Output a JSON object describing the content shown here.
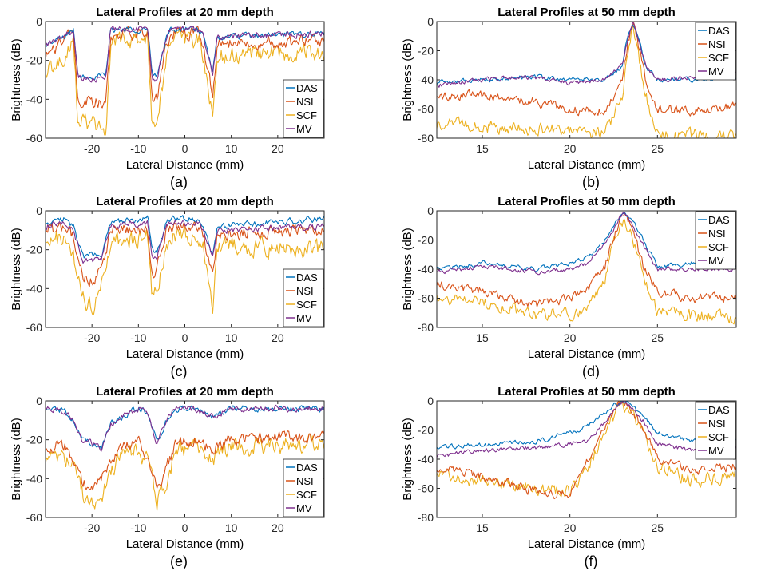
{
  "colors": {
    "DAS": "#0072BD",
    "NSI": "#D95319",
    "SCF": "#EDB120",
    "MV": "#7E2F8E",
    "axis": "#262626",
    "text": "#000000"
  },
  "legend_entries": [
    "DAS",
    "NSI",
    "SCF",
    "MV"
  ],
  "chart_data": [
    {
      "panel": "a",
      "caption": "(a)",
      "type": "line",
      "title": "Lateral Profiles at 20 mm depth",
      "xlabel": "Lateral Distance (mm)",
      "ylabel": "Brightness (dB)",
      "xlim": [
        -30,
        30
      ],
      "ylim": [
        -60,
        0
      ],
      "xticks": [
        -20,
        -10,
        0,
        10,
        20
      ],
      "yticks": [
        -60,
        -40,
        -20,
        0
      ],
      "legend_position": "bottom-right",
      "x": [
        -30,
        -26,
        -24,
        -23,
        -17,
        -16,
        -15,
        -8,
        -7,
        -6,
        -4,
        -3,
        3,
        4,
        6,
        7,
        30
      ],
      "series": [
        {
          "name": "DAS",
          "values": [
            -12,
            -8,
            -4,
            -28,
            -28,
            -4,
            -4,
            -4,
            -28,
            -28,
            -8,
            -4,
            -4,
            -8,
            -26,
            -8,
            -6
          ]
        },
        {
          "name": "NSI",
          "values": [
            -18,
            -10,
            -6,
            -40,
            -42,
            -8,
            -6,
            -6,
            -40,
            -40,
            -12,
            -6,
            -6,
            -12,
            -38,
            -12,
            -10
          ]
        },
        {
          "name": "SCF",
          "values": [
            -28,
            -18,
            -8,
            -52,
            -55,
            -12,
            -10,
            -10,
            -55,
            -55,
            -18,
            -10,
            -10,
            -18,
            -50,
            -18,
            -16
          ]
        },
        {
          "name": "MV",
          "values": [
            -12,
            -8,
            -4,
            -29,
            -30,
            -4,
            -4,
            -4,
            -30,
            -30,
            -8,
            -4,
            -4,
            -8,
            -27,
            -8,
            -6
          ]
        }
      ]
    },
    {
      "panel": "b",
      "caption": "(b)",
      "type": "line",
      "title": "Lateral Profiles at 50 mm depth",
      "xlabel": "Lateral Distance (mm)",
      "ylabel": "Brightness (dB)",
      "xlim": [
        12.4,
        29.5
      ],
      "ylim": [
        -80,
        0
      ],
      "xticks": [
        15,
        20,
        25
      ],
      "yticks": [
        -80,
        -60,
        -40,
        -20,
        0
      ],
      "legend_position": "top-right",
      "x": [
        12.4,
        15,
        18,
        20,
        22,
        23,
        23.3,
        23.6,
        23.9,
        24.3,
        25,
        27,
        29.5
      ],
      "series": [
        {
          "name": "DAS",
          "values": [
            -42,
            -40,
            -38,
            -40,
            -40,
            -30,
            -10,
            0,
            -10,
            -30,
            -40,
            -40,
            -38
          ]
        },
        {
          "name": "NSI",
          "values": [
            -52,
            -50,
            -55,
            -60,
            -62,
            -40,
            -15,
            0,
            -15,
            -40,
            -60,
            -62,
            -58
          ]
        },
        {
          "name": "SCF",
          "values": [
            -70,
            -72,
            -74,
            -75,
            -78,
            -50,
            -20,
            -2,
            -20,
            -50,
            -78,
            -78,
            -80
          ]
        },
        {
          "name": "MV",
          "values": [
            -44,
            -40,
            -38,
            -42,
            -40,
            -30,
            -12,
            0,
            -12,
            -30,
            -40,
            -38,
            -36
          ]
        }
      ]
    },
    {
      "panel": "c",
      "caption": "(c)",
      "type": "line",
      "title": "Lateral Profiles at 20 mm depth",
      "xlabel": "Lateral Distance (mm)",
      "ylabel": "Brightness (dB)",
      "xlim": [
        -30,
        30
      ],
      "ylim": [
        -60,
        0
      ],
      "xticks": [
        -20,
        -10,
        0,
        10,
        20
      ],
      "yticks": [
        -60,
        -40,
        -20,
        0
      ],
      "legend_position": "bottom-right",
      "x": [
        -30,
        -26,
        -24,
        -22,
        -20,
        -18,
        -16,
        -8,
        -7,
        -6,
        -4,
        -3,
        3,
        4,
        6,
        7,
        30
      ],
      "series": [
        {
          "name": "DAS",
          "values": [
            -6,
            -4,
            -8,
            -24,
            -22,
            -24,
            -6,
            -4,
            -20,
            -22,
            -6,
            -4,
            -4,
            -8,
            -22,
            -8,
            -4
          ]
        },
        {
          "name": "NSI",
          "values": [
            -10,
            -8,
            -14,
            -34,
            -36,
            -30,
            -10,
            -8,
            -32,
            -30,
            -10,
            -8,
            -8,
            -12,
            -34,
            -12,
            -10
          ]
        },
        {
          "name": "SCF",
          "values": [
            -16,
            -14,
            -22,
            -45,
            -50,
            -40,
            -16,
            -14,
            -45,
            -42,
            -16,
            -14,
            -14,
            -18,
            -48,
            -18,
            -20
          ]
        },
        {
          "name": "MV",
          "values": [
            -8,
            -6,
            -10,
            -26,
            -25,
            -26,
            -8,
            -6,
            -24,
            -24,
            -8,
            -6,
            -6,
            -10,
            -24,
            -10,
            -8
          ]
        }
      ]
    },
    {
      "panel": "d",
      "caption": "(d)",
      "type": "line",
      "title": "Lateral Profiles at 50 mm depth",
      "xlabel": "Lateral Distance (mm)",
      "ylabel": "Brightness (dB)",
      "xlim": [
        12.4,
        29.5
      ],
      "ylim": [
        -80,
        0
      ],
      "xticks": [
        15,
        20,
        25
      ],
      "yticks": [
        -80,
        -60,
        -40,
        -20,
        0
      ],
      "legend_position": "top-right",
      "x": [
        12.4,
        15,
        18,
        20,
        21,
        22,
        22.6,
        23.1,
        23.6,
        24.2,
        25,
        27,
        29.5
      ],
      "series": [
        {
          "name": "DAS",
          "values": [
            -40,
            -36,
            -40,
            -36,
            -32,
            -20,
            -8,
            0,
            -8,
            -20,
            -38,
            -36,
            -38
          ]
        },
        {
          "name": "NSI",
          "values": [
            -50,
            -55,
            -65,
            -60,
            -55,
            -38,
            -15,
            0,
            -15,
            -38,
            -55,
            -60,
            -60
          ]
        },
        {
          "name": "SCF",
          "values": [
            -60,
            -62,
            -72,
            -70,
            -68,
            -45,
            -18,
            -4,
            -18,
            -45,
            -70,
            -72,
            -74
          ]
        },
        {
          "name": "MV",
          "values": [
            -42,
            -38,
            -42,
            -40,
            -36,
            -24,
            -10,
            0,
            -10,
            -24,
            -40,
            -40,
            -40
          ]
        }
      ]
    },
    {
      "panel": "e",
      "caption": "(e)",
      "type": "line",
      "title": "Lateral Profiles at 20 mm depth",
      "xlabel": "Lateral Distance (mm)",
      "ylabel": "Brightness (dB)",
      "xlim": [
        -30,
        30
      ],
      "ylim": [
        -60,
        0
      ],
      "xticks": [
        -20,
        -10,
        0,
        10,
        20
      ],
      "yticks": [
        -60,
        -40,
        -20,
        0
      ],
      "legend_position": "bottom-right",
      "x": [
        -30,
        -26,
        -24,
        -22,
        -20,
        -18,
        -16,
        -12,
        -10,
        -8,
        -6,
        -4,
        -2,
        2,
        6,
        10,
        30
      ],
      "series": [
        {
          "name": "DAS",
          "values": [
            -4,
            -5,
            -10,
            -20,
            -22,
            -24,
            -12,
            -6,
            -4,
            -6,
            -22,
            -10,
            -4,
            -4,
            -8,
            -4,
            -4
          ]
        },
        {
          "name": "NSI",
          "values": [
            -25,
            -22,
            -30,
            -42,
            -45,
            -40,
            -30,
            -22,
            -20,
            -28,
            -45,
            -35,
            -22,
            -20,
            -25,
            -20,
            -18
          ]
        },
        {
          "name": "SCF",
          "values": [
            -30,
            -28,
            -35,
            -48,
            -52,
            -50,
            -35,
            -26,
            -24,
            -32,
            -52,
            -42,
            -26,
            -24,
            -30,
            -24,
            -22
          ]
        },
        {
          "name": "MV",
          "values": [
            -4,
            -5,
            -10,
            -20,
            -22,
            -24,
            -12,
            -6,
            -4,
            -6,
            -22,
            -10,
            -4,
            -4,
            -8,
            -4,
            -4
          ]
        }
      ]
    },
    {
      "panel": "f",
      "caption": "(f)",
      "type": "line",
      "title": "Lateral Profiles at 50 mm depth",
      "xlabel": "Lateral Distance (mm)",
      "ylabel": "Brightness (dB)",
      "xlim": [
        12.4,
        29.5
      ],
      "ylim": [
        -80,
        0
      ],
      "xticks": [
        15,
        20,
        25
      ],
      "yticks": [
        -80,
        -60,
        -40,
        -20,
        0
      ],
      "legend_position": "top-right",
      "x": [
        12.4,
        15,
        18,
        20,
        21,
        22,
        22.6,
        23,
        23.5,
        24.2,
        25,
        27,
        29.5
      ],
      "series": [
        {
          "name": "DAS",
          "values": [
            -32,
            -30,
            -28,
            -22,
            -18,
            -8,
            -2,
            0,
            -2,
            -10,
            -22,
            -28,
            -26
          ]
        },
        {
          "name": "NSI",
          "values": [
            -45,
            -52,
            -62,
            -65,
            -40,
            -18,
            -6,
            0,
            -6,
            -18,
            -40,
            -48,
            -45
          ]
        },
        {
          "name": "SCF",
          "values": [
            -50,
            -55,
            -60,
            -62,
            -45,
            -22,
            -8,
            -2,
            -8,
            -22,
            -45,
            -55,
            -50
          ]
        },
        {
          "name": "MV",
          "values": [
            -38,
            -34,
            -32,
            -30,
            -28,
            -14,
            -4,
            0,
            -4,
            -14,
            -30,
            -34,
            -32
          ]
        }
      ]
    }
  ]
}
